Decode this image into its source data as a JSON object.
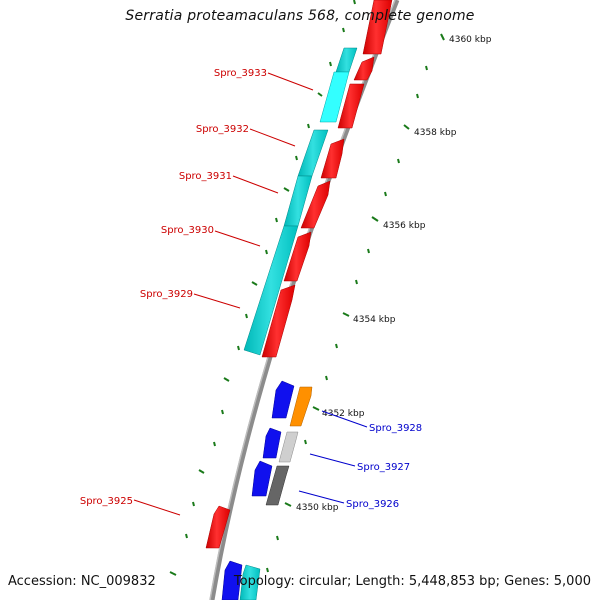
{
  "title": "Serratia proteamaculans 568, complete genome",
  "footer": {
    "accession": "Accession: NC_009832",
    "summary": "Topology: circular; Length: 5,448,853 bp; Genes: 5,000"
  },
  "colors": {
    "backbone": "#888888",
    "tick_green": "#1a7a1a",
    "label_red": "#cc0000",
    "label_blue": "#0000cc",
    "gene_red": "#ff0000",
    "gene_cyan": "#00cccc",
    "gene_blue": "#0000ee",
    "gene_orange": "#ff8800",
    "gene_lightgray": "#cccccc",
    "gene_darkgray": "#666666"
  },
  "kbp_labels": [
    "4350 kbp",
    "4352 kbp",
    "4354 kbp",
    "4356 kbp",
    "4358 kbp",
    "4360 kbp"
  ],
  "gene_labels": {
    "spro_3933": "Spro_3933",
    "spro_3932": "Spro_3932",
    "spro_3931": "Spro_3931",
    "spro_3930": "Spro_3930",
    "spro_3929": "Spro_3929",
    "spro_3928": "Spro_3928",
    "spro_3927": "Spro_3927",
    "spro_3926": "Spro_3926",
    "spro_3925": "Spro_3925"
  }
}
